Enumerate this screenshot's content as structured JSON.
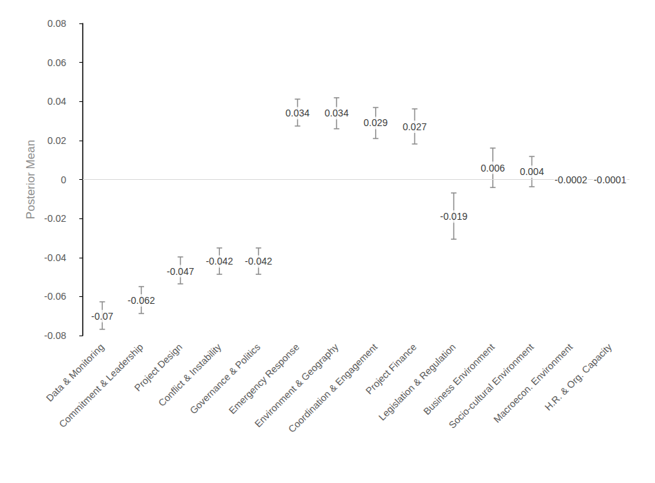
{
  "chart_data": {
    "type": "scatter",
    "ylabel": "Posterior Mean",
    "categories": [
      "Data & Monitoring",
      "Commitment & Leadership",
      "Project Design",
      "Conflict & Instability",
      "Governance & Politics",
      "Emergency Response",
      "Environment & Geography",
      "Coordination & Engagement",
      "Project Finance",
      "Legislation & Regulation",
      "Business Environment",
      "Socio-cultural Environment",
      "Macroecon. Environment",
      "H.R. & Org. Capacity"
    ],
    "values": [
      -0.07,
      -0.062,
      -0.047,
      -0.042,
      -0.042,
      0.034,
      0.034,
      0.029,
      0.027,
      -0.019,
      0.006,
      0.004,
      -0.0002,
      -0.0001
    ],
    "lower": [
      -0.0768,
      -0.0687,
      -0.0535,
      -0.0486,
      -0.0486,
      0.0274,
      0.026,
      0.021,
      0.0182,
      -0.0306,
      -0.0041,
      -0.0037,
      -0.0003,
      -0.0002
    ],
    "upper": [
      -0.0627,
      -0.0549,
      -0.0397,
      -0.0351,
      -0.0351,
      0.0412,
      0.0419,
      0.0369,
      0.0362,
      -0.0069,
      0.0161,
      0.0118,
      -0.0001,
      0.0
    ],
    "color": "#8c8c8c",
    "ylim": [
      -0.08,
      0.08
    ],
    "yticks": [
      -0.08,
      -0.06,
      -0.04,
      -0.02,
      0,
      0.02,
      0.04,
      0.06,
      0.08
    ],
    "grid": false,
    "data_labels": true
  }
}
